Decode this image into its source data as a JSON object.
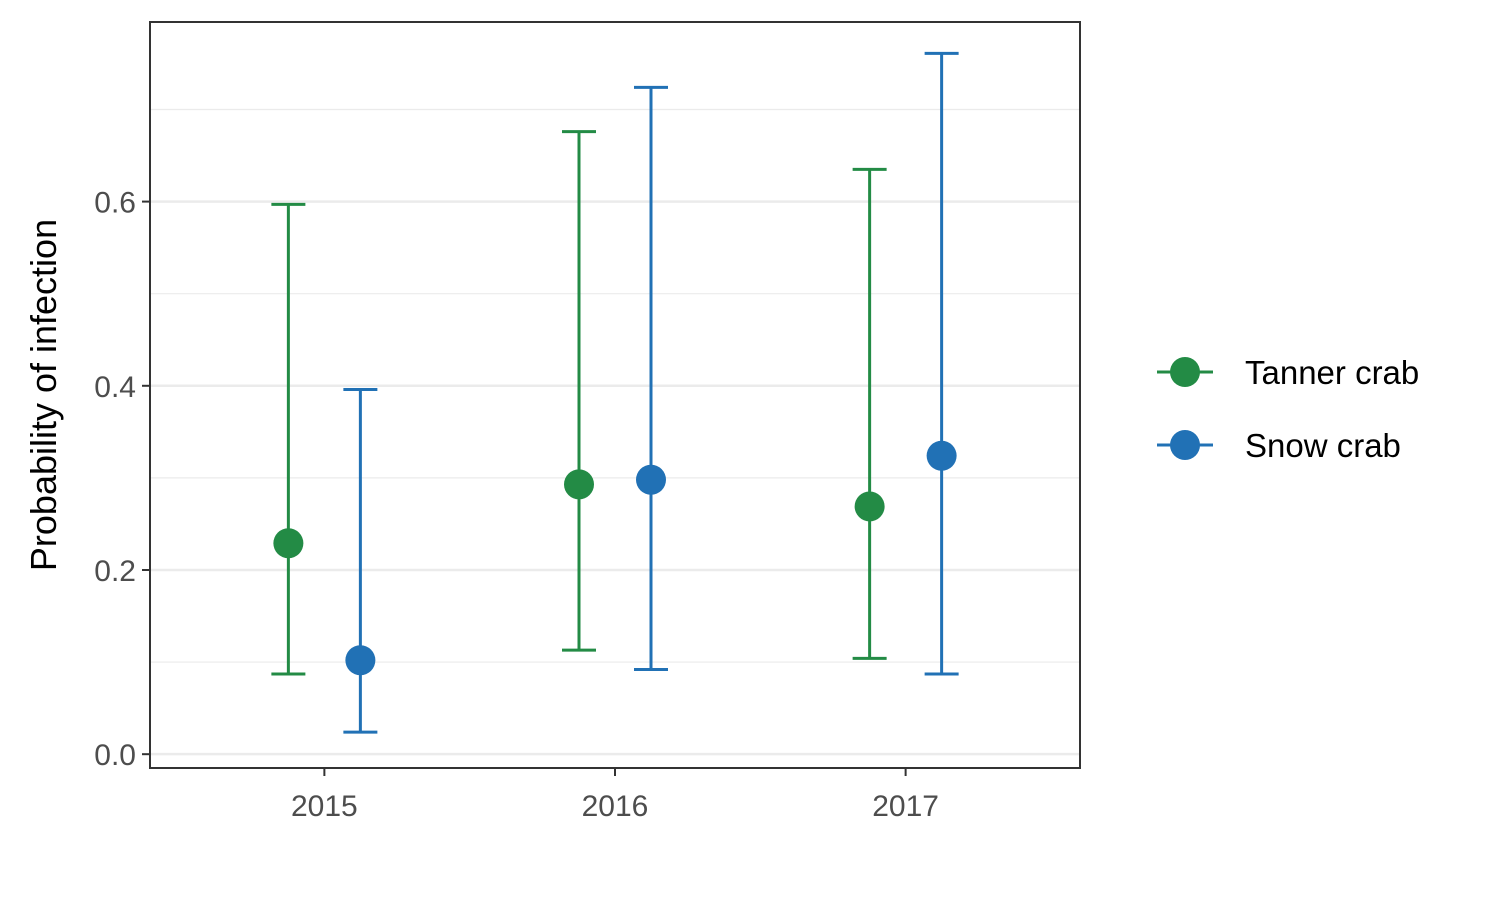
{
  "chart_data": {
    "type": "scatter",
    "subtype": "point-with-errorbars",
    "title": "",
    "xlabel": "",
    "ylabel": "Probability of infection",
    "categories": [
      "2015",
      "2016",
      "2017"
    ],
    "ylim": [
      -0.015,
      0.795
    ],
    "y_ticks": [
      0.0,
      0.2,
      0.4,
      0.6
    ],
    "y_tick_labels": [
      "0.0",
      "0.2",
      "0.4",
      "0.6"
    ],
    "grid": "horizontal major and minor",
    "legend_position": "right",
    "series": [
      {
        "name": "Tanner crab",
        "color": "#238b45",
        "values": [
          0.229,
          0.293,
          0.269
        ],
        "lower": [
          0.087,
          0.113,
          0.104
        ],
        "upper": [
          0.597,
          0.676,
          0.635
        ]
      },
      {
        "name": "Snow crab",
        "color": "#2171b5",
        "values": [
          0.102,
          0.298,
          0.324
        ],
        "lower": [
          0.024,
          0.092,
          0.087
        ],
        "upper": [
          0.396,
          0.724,
          0.761
        ]
      }
    ]
  }
}
